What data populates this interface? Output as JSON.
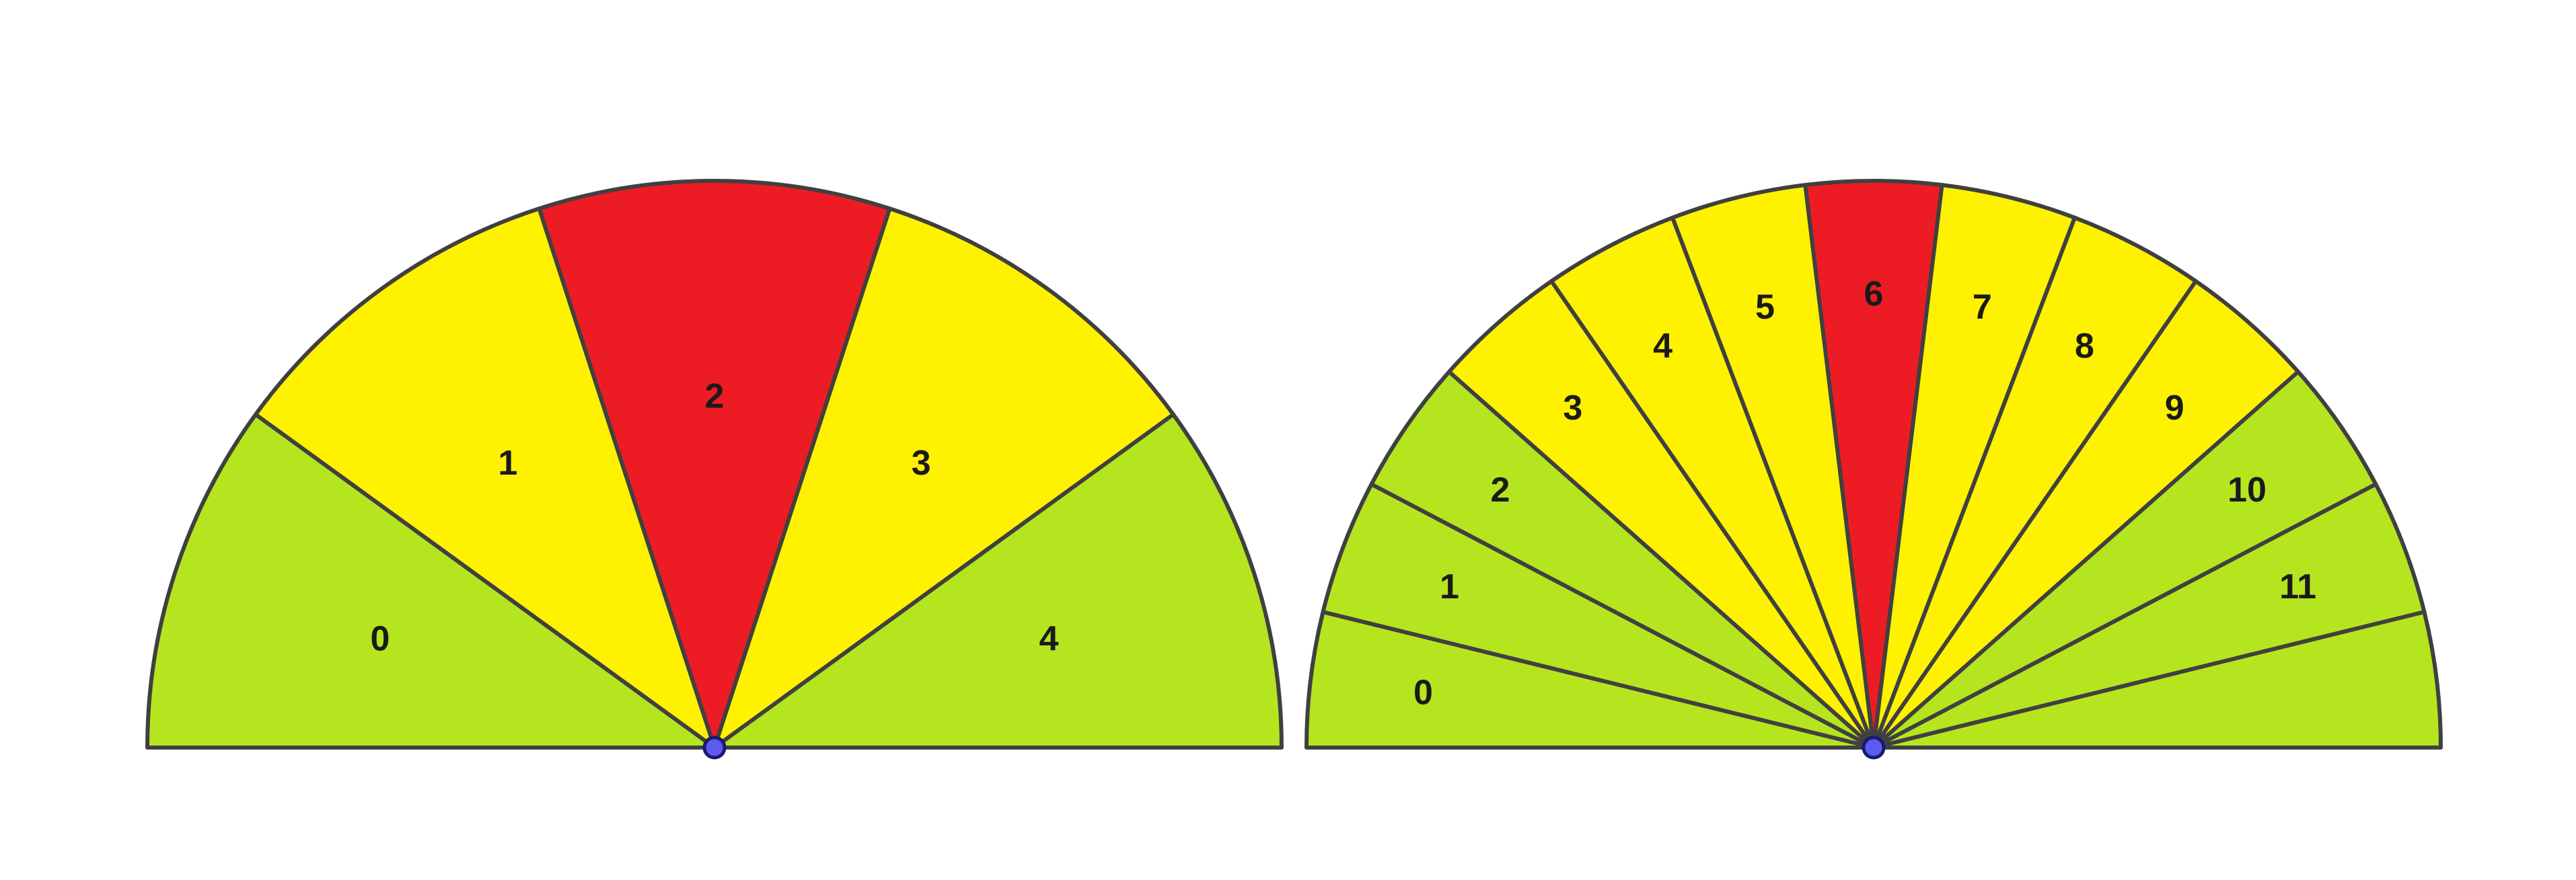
{
  "colors": {
    "green": "#b5e51f",
    "yellow": "#fff200",
    "red": "#ed1c24",
    "stroke": "#404040",
    "hub": "#5b5bf0"
  },
  "dials": [
    {
      "sectors": [
        {
          "label": "0",
          "color": "green"
        },
        {
          "label": "1",
          "color": "yellow"
        },
        {
          "label": "2",
          "color": "red"
        },
        {
          "label": "3",
          "color": "yellow"
        },
        {
          "label": "4",
          "color": "green"
        }
      ],
      "unlabeled_sectors_after": 0
    },
    {
      "sectors": [
        {
          "label": "0",
          "color": "green"
        },
        {
          "label": "1",
          "color": "green"
        },
        {
          "label": "2",
          "color": "green"
        },
        {
          "label": "3",
          "color": "yellow"
        },
        {
          "label": "4",
          "color": "yellow"
        },
        {
          "label": "5",
          "color": "yellow"
        },
        {
          "label": "6",
          "color": "red"
        },
        {
          "label": "7",
          "color": "yellow"
        },
        {
          "label": "8",
          "color": "yellow"
        },
        {
          "label": "9",
          "color": "yellow"
        },
        {
          "label": "10",
          "color": "green"
        },
        {
          "label": "11",
          "color": "green"
        },
        {
          "label": "",
          "color": "green"
        }
      ]
    }
  ]
}
